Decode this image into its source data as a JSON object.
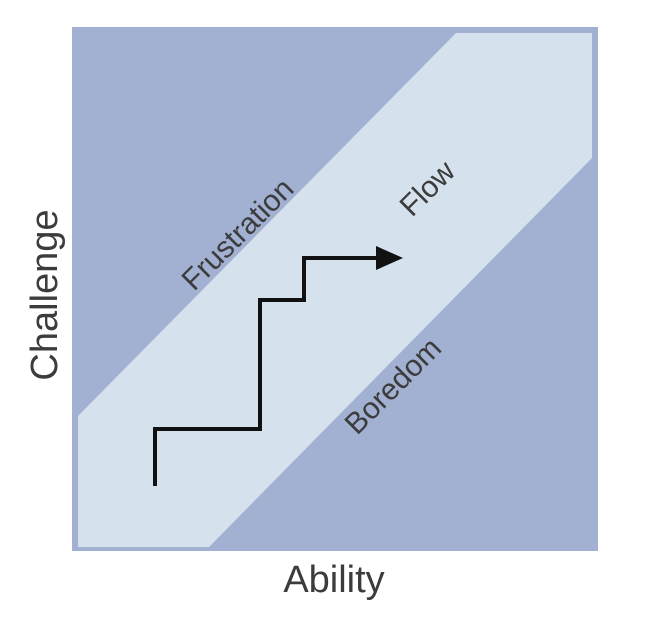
{
  "diagram": {
    "x_axis_label": "Ability",
    "y_axis_label": "Challenge",
    "regions": {
      "upper": "Frustration",
      "middle": "Flow",
      "lower": "Boredom"
    },
    "colors": {
      "background_region": "#a2b1d2",
      "flow_channel": "#d5e2ee",
      "text": "#3c3c3c",
      "path": "#111111"
    }
  }
}
